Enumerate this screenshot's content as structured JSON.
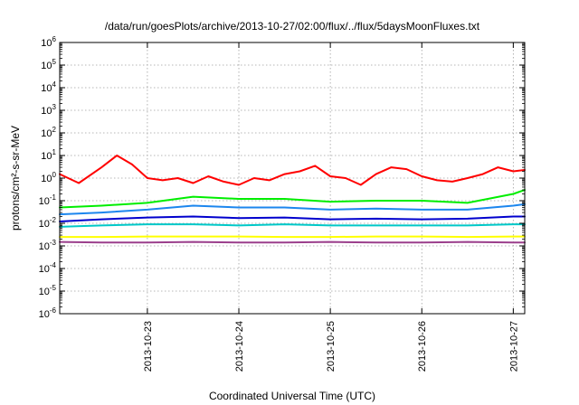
{
  "chart_data": {
    "type": "line",
    "title": "/data/run/goesPlots/archive/2013-10-27/02:00/flux/../flux/5daysMoonFluxes.txt",
    "xlabel": "Coordinated Universal Time (UTC)",
    "ylabel": "protons/cm²-s-sr-MeV",
    "yscale": "log",
    "ylim_exponent": [
      -6,
      6
    ],
    "y_tick_exponents": [
      -6,
      -5,
      -4,
      -3,
      -2,
      -1,
      0,
      1,
      2,
      3,
      4,
      5,
      6
    ],
    "xlim": [
      "2013-10-22T01:00",
      "2013-10-27T03:00"
    ],
    "x_tick_labels": [
      "2013-10-23",
      "2013-10-24",
      "2013-10-25",
      "2013-10-26",
      "2013-10-27"
    ],
    "grid": true,
    "legend": "none",
    "series": [
      {
        "color": "#ff0000",
        "x": [
          "2013-10-22T01:00",
          "2013-10-22T06:00",
          "2013-10-22T12:00",
          "2013-10-22T16:00",
          "2013-10-22T20:00",
          "2013-10-23T00:00",
          "2013-10-23T04:00",
          "2013-10-23T08:00",
          "2013-10-23T12:00",
          "2013-10-23T16:00",
          "2013-10-23T20:00",
          "2013-10-24T00:00",
          "2013-10-24T04:00",
          "2013-10-24T08:00",
          "2013-10-24T12:00",
          "2013-10-24T16:00",
          "2013-10-24T20:00",
          "2013-10-25T00:00",
          "2013-10-25T04:00",
          "2013-10-25T08:00",
          "2013-10-25T12:00",
          "2013-10-25T16:00",
          "2013-10-25T20:00",
          "2013-10-26T00:00",
          "2013-10-26T04:00",
          "2013-10-26T08:00",
          "2013-10-26T12:00",
          "2013-10-26T16:00",
          "2013-10-26T20:00",
          "2013-10-27T00:00",
          "2013-10-27T03:00"
        ],
        "values": [
          1.5,
          0.6,
          3.0,
          10.0,
          4.0,
          1.0,
          0.8,
          1.0,
          0.6,
          1.2,
          0.7,
          0.5,
          1.0,
          0.8,
          1.5,
          2.0,
          3.5,
          1.2,
          1.0,
          0.5,
          1.5,
          3.0,
          2.5,
          1.2,
          0.8,
          0.7,
          1.0,
          1.5,
          3.0,
          2.0,
          2.3
        ]
      },
      {
        "color": "#00ee00",
        "x": [
          "2013-10-22T01:00",
          "2013-10-22T12:00",
          "2013-10-23T00:00",
          "2013-10-23T12:00",
          "2013-10-24T00:00",
          "2013-10-24T12:00",
          "2013-10-25T00:00",
          "2013-10-25T12:00",
          "2013-10-26T00:00",
          "2013-10-26T12:00",
          "2013-10-27T00:00",
          "2013-10-27T03:00"
        ],
        "values": [
          0.05,
          0.06,
          0.08,
          0.15,
          0.12,
          0.12,
          0.09,
          0.1,
          0.1,
          0.08,
          0.2,
          0.3
        ]
      },
      {
        "color": "#1c86ee",
        "x": [
          "2013-10-22T01:00",
          "2013-10-22T12:00",
          "2013-10-23T00:00",
          "2013-10-23T12:00",
          "2013-10-24T00:00",
          "2013-10-24T12:00",
          "2013-10-25T00:00",
          "2013-10-25T12:00",
          "2013-10-26T00:00",
          "2013-10-26T12:00",
          "2013-10-27T00:00",
          "2013-10-27T03:00"
        ],
        "values": [
          0.025,
          0.03,
          0.04,
          0.06,
          0.05,
          0.05,
          0.04,
          0.045,
          0.04,
          0.04,
          0.06,
          0.07
        ]
      },
      {
        "color": "#0000cd",
        "x": [
          "2013-10-22T01:00",
          "2013-10-22T12:00",
          "2013-10-23T00:00",
          "2013-10-23T12:00",
          "2013-10-24T00:00",
          "2013-10-24T12:00",
          "2013-10-25T00:00",
          "2013-10-25T12:00",
          "2013-10-26T00:00",
          "2013-10-26T12:00",
          "2013-10-27T00:00",
          "2013-10-27T03:00"
        ],
        "values": [
          0.012,
          0.015,
          0.018,
          0.02,
          0.017,
          0.018,
          0.015,
          0.016,
          0.015,
          0.016,
          0.02,
          0.02
        ]
      },
      {
        "color": "#00c8c8",
        "x": [
          "2013-10-22T01:00",
          "2013-10-22T12:00",
          "2013-10-23T00:00",
          "2013-10-23T12:00",
          "2013-10-24T00:00",
          "2013-10-24T12:00",
          "2013-10-25T00:00",
          "2013-10-25T12:00",
          "2013-10-26T00:00",
          "2013-10-26T12:00",
          "2013-10-27T00:00",
          "2013-10-27T03:00"
        ],
        "values": [
          0.007,
          0.008,
          0.009,
          0.009,
          0.008,
          0.009,
          0.008,
          0.008,
          0.008,
          0.008,
          0.009,
          0.009
        ]
      },
      {
        "color": "#ffff00",
        "x": [
          "2013-10-22T01:00",
          "2013-10-22T12:00",
          "2013-10-23T00:00",
          "2013-10-23T12:00",
          "2013-10-24T00:00",
          "2013-10-24T12:00",
          "2013-10-25T00:00",
          "2013-10-25T12:00",
          "2013-10-26T00:00",
          "2013-10-26T12:00",
          "2013-10-27T00:00",
          "2013-10-27T03:00"
        ],
        "values": [
          0.0025,
          0.0025,
          0.0026,
          0.0026,
          0.0026,
          0.0025,
          0.0025,
          0.0026,
          0.0026,
          0.0025,
          0.0026,
          0.0026
        ]
      },
      {
        "color": "#9b3f8c",
        "x": [
          "2013-10-22T01:00",
          "2013-10-22T12:00",
          "2013-10-23T00:00",
          "2013-10-23T12:00",
          "2013-10-24T00:00",
          "2013-10-24T12:00",
          "2013-10-25T00:00",
          "2013-10-25T12:00",
          "2013-10-26T00:00",
          "2013-10-26T12:00",
          "2013-10-27T00:00",
          "2013-10-27T03:00"
        ],
        "values": [
          0.0015,
          0.0014,
          0.0014,
          0.0015,
          0.0014,
          0.0014,
          0.0015,
          0.0014,
          0.0014,
          0.0015,
          0.0014,
          0.0014
        ]
      }
    ]
  }
}
